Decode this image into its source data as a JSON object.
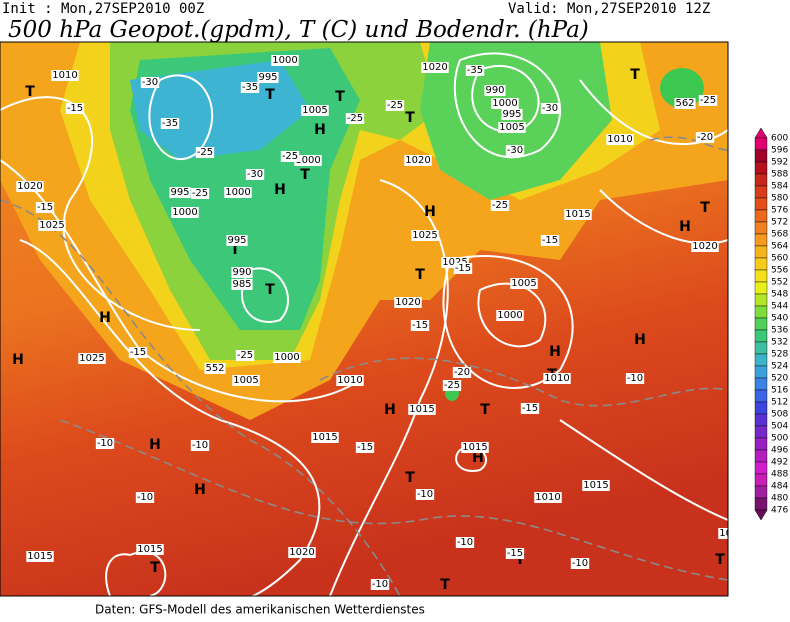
{
  "header": {
    "init": "Init : Mon,27SEP2010 00Z",
    "valid": "Valid: Mon,27SEP2010 12Z",
    "title": "500 hPa Geopot.(gpdm), T (C) und Bodendr. (hPa)"
  },
  "footer": "Daten: GFS-Modell des amerikanischen Wetterdienstes",
  "colorbar": {
    "labels": [
      "600",
      "596",
      "592",
      "588",
      "584",
      "580",
      "576",
      "572",
      "568",
      "564",
      "560",
      "556",
      "552",
      "548",
      "544",
      "540",
      "536",
      "532",
      "528",
      "524",
      "520",
      "516",
      "512",
      "508",
      "504",
      "500",
      "496",
      "492",
      "488",
      "484",
      "480",
      "476"
    ]
  },
  "map": {
    "labels": [
      "H",
      "H",
      "H",
      "H",
      "H",
      "H",
      "H",
      "H",
      "H",
      "H",
      "H",
      "H",
      "T",
      "T",
      "T",
      "T",
      "T",
      "T",
      "T",
      "T",
      "T",
      "T",
      "T",
      "T",
      "T",
      "T",
      "T",
      "T",
      "T",
      "1010",
      "1020",
      "1000",
      "995",
      "1005",
      "1000",
      "995",
      "1000",
      "1000",
      "995",
      "990",
      "985",
      "1020",
      "1025",
      "1025",
      "1020",
      "1005",
      "1000",
      "1010",
      "1005",
      "1000",
      "1025",
      "1015",
      "1015",
      "1015",
      "1015",
      "1010",
      "1015",
      "1015",
      "1020",
      "1010",
      "1010",
      "1015",
      "1020",
      "1025",
      "1020",
      "1010",
      "1000",
      "995",
      "1005",
      "990",
      "-15",
      "-15",
      "-15",
      "-10",
      "-10",
      "-10",
      "-10",
      "-10",
      "-10",
      "-15",
      "-10",
      "-15",
      "-25",
      "-25",
      "-30",
      "-25",
      "-35",
      "-30",
      "-35",
      "-25",
      "-25",
      "-25",
      "-30",
      "-35",
      "-30",
      "-25",
      "-15",
      "-15",
      "-20",
      "-25",
      "-15",
      "-10",
      "-20",
      "-25",
      "-15",
      "552",
      "562"
    ]
  }
}
